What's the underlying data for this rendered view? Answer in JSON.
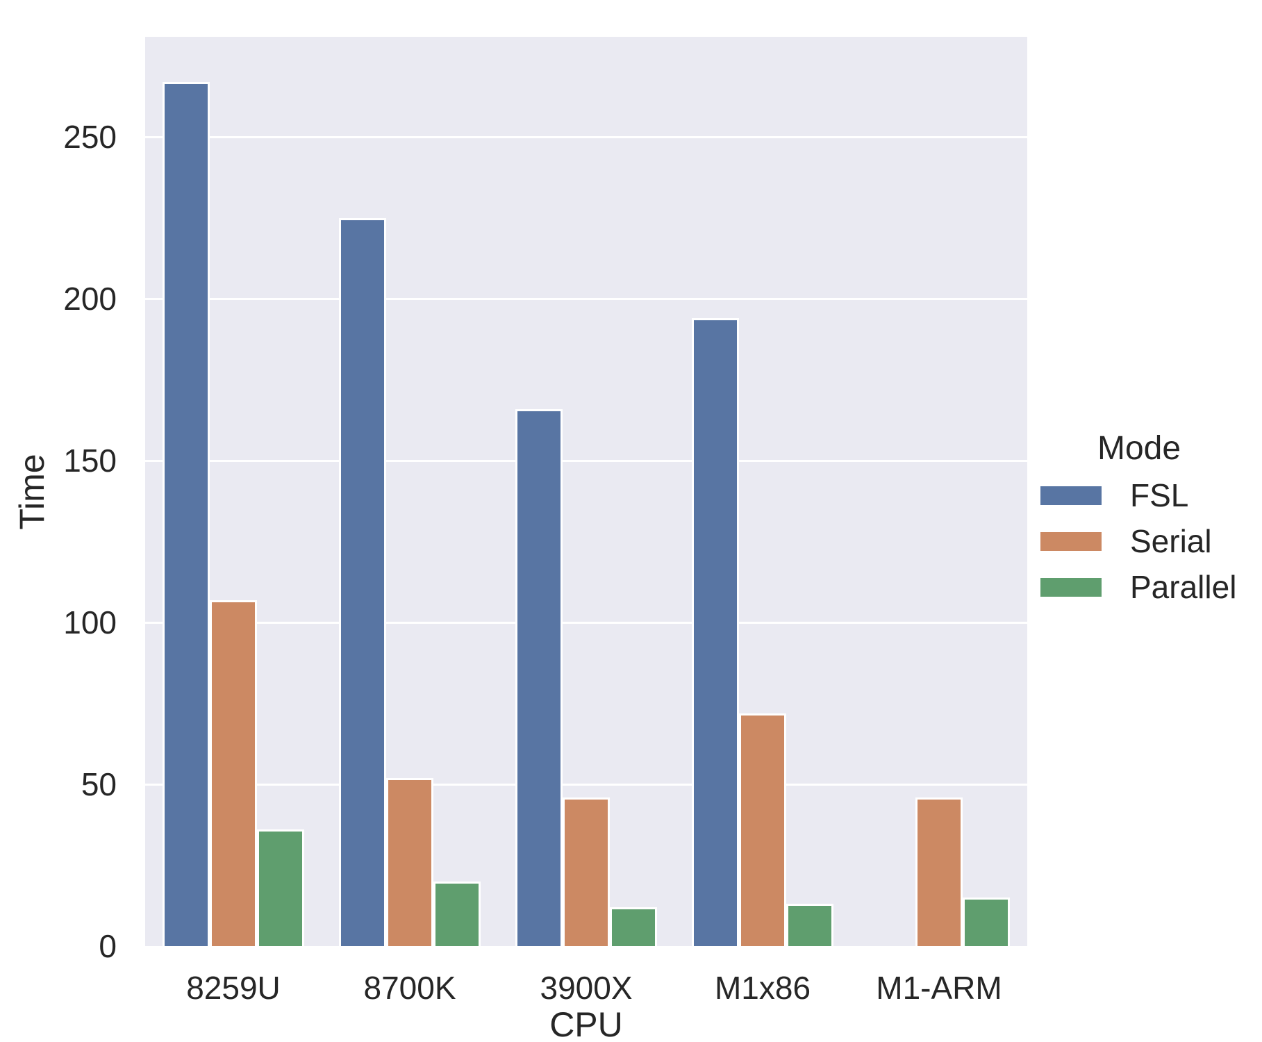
{
  "chart_data": {
    "type": "bar",
    "title": "",
    "xlabel": "CPU",
    "ylabel": "Time",
    "categories": [
      "8259U",
      "8700K",
      "3900X",
      "M1x86",
      "M1-ARM"
    ],
    "series": [
      {
        "name": "FSL",
        "color": "#5875A3",
        "values": [
          267,
          225,
          166,
          194,
          null
        ]
      },
      {
        "name": "Serial",
        "color": "#CC8963",
        "values": [
          107,
          52,
          46,
          72,
          46
        ]
      },
      {
        "name": "Parallel",
        "color": "#5F9E6E",
        "values": [
          36,
          20,
          12,
          13,
          15
        ]
      }
    ],
    "yticks": [
      0,
      50,
      100,
      150,
      200,
      250
    ],
    "ylim": [
      0,
      281
    ],
    "grid": true,
    "legend": {
      "title": "Mode",
      "position": "right-outside"
    },
    "colors": {
      "figure_background": "#FFFFFF",
      "plot_background": "#EAEAF2",
      "gridline": "#FFFFFF",
      "text": "#262626"
    }
  }
}
